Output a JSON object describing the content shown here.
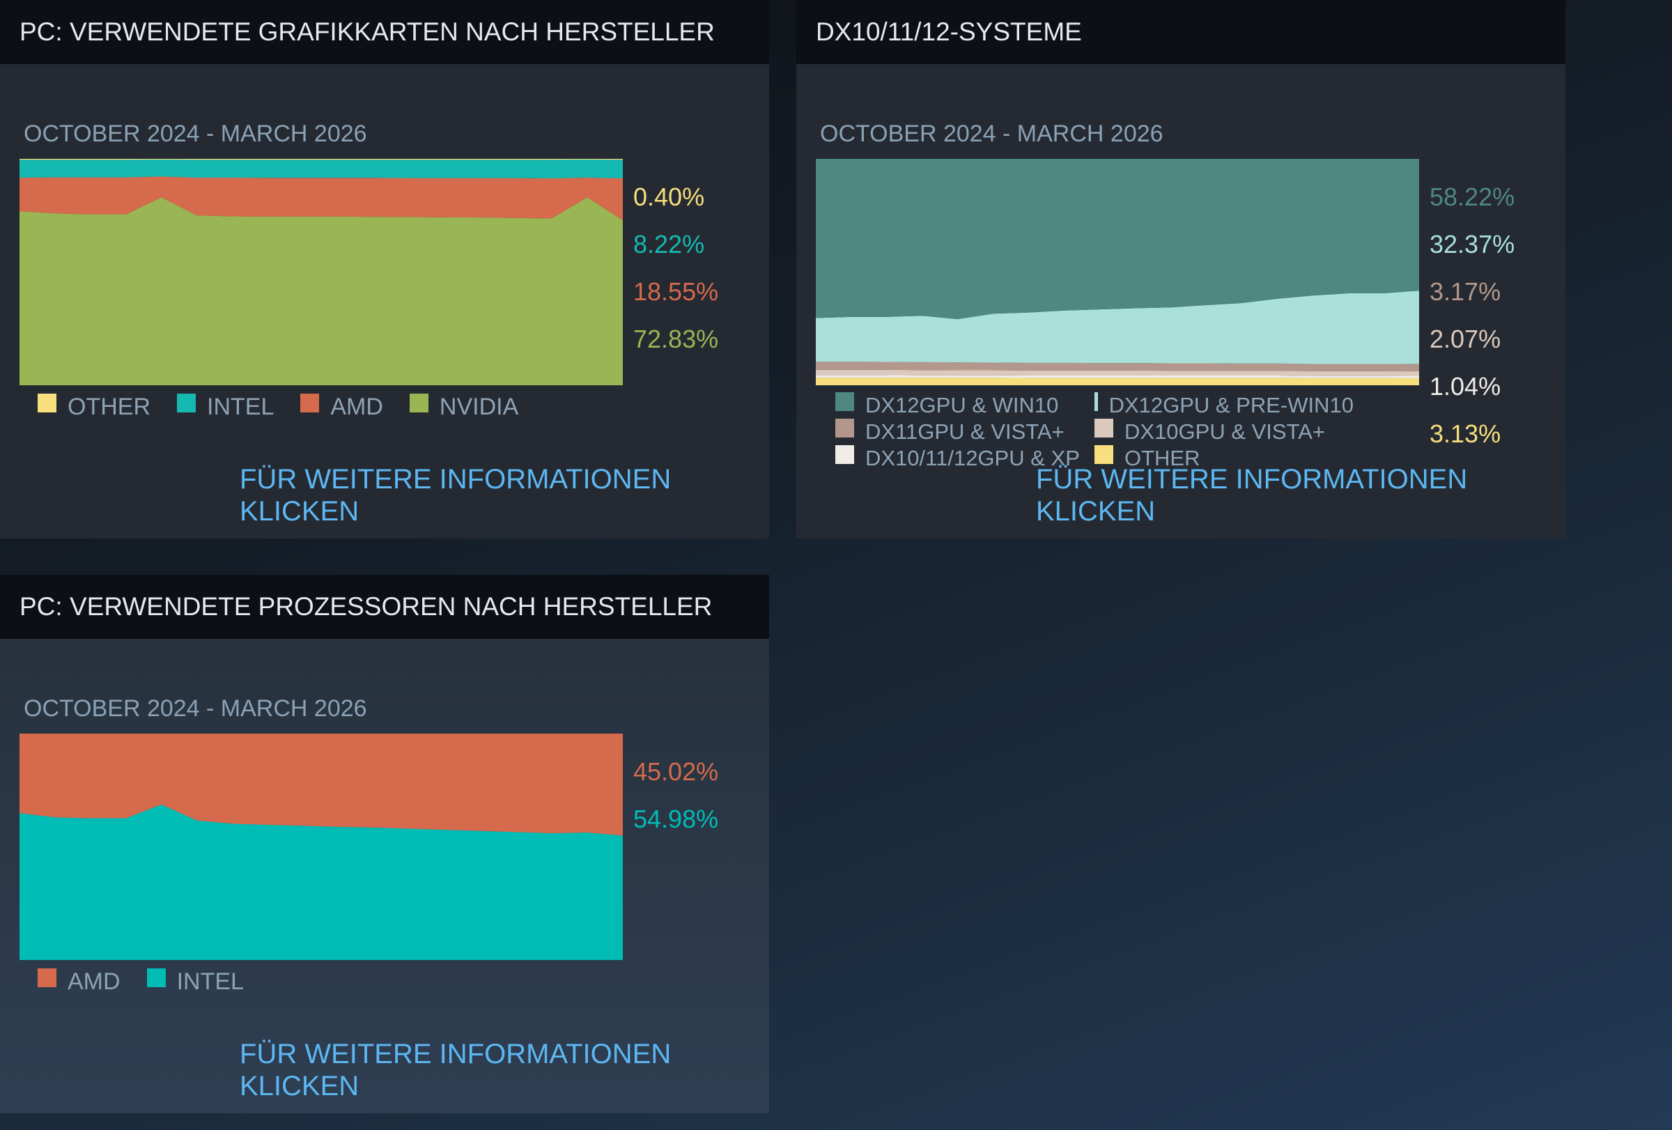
{
  "chart_data": [
    {
      "type": "area",
      "stacked": true,
      "title": "PC: VERWENDETE GRAFIKKARTEN NACH HERSTELLER",
      "subtitle": "OCTOBER 2024 - MARCH 2026",
      "link": "FÜR WEITERE INFORMATIONEN KLICKEN",
      "series": [
        {
          "name": "OTHER",
          "color": "#f6df7c",
          "value_label": "0.40%",
          "values": [
            0.4,
            0.4,
            0.4,
            0.4,
            0.3,
            0.4,
            0.4,
            0.4,
            0.4,
            0.4,
            0.4,
            0.4,
            0.4,
            0.4,
            0.4,
            0.4,
            0.3,
            0.4
          ]
        },
        {
          "name": "INTEL",
          "color": "#15b9b2",
          "value_label": "8.22%",
          "values": [
            7.9,
            7.8,
            7.8,
            7.8,
            7.5,
            7.9,
            7.9,
            8.0,
            8.0,
            8.0,
            8.0,
            8.1,
            8.1,
            8.1,
            8.1,
            8.2,
            8.0,
            8.22
          ]
        },
        {
          "name": "AMD",
          "color": "#d56b4c",
          "value_label": "18.55%",
          "values": [
            14.8,
            15.9,
            16.3,
            16.3,
            9.2,
            16.7,
            17.1,
            17.1,
            17.1,
            17.1,
            17.2,
            17.2,
            17.3,
            17.4,
            17.6,
            17.7,
            8.7,
            18.55
          ]
        },
        {
          "name": "NVIDIA",
          "color": "#9ab553",
          "value_label": "72.83%",
          "values": [
            76.9,
            75.9,
            75.5,
            75.5,
            83.0,
            75.0,
            74.6,
            74.5,
            74.5,
            74.5,
            74.4,
            74.3,
            74.2,
            74.1,
            73.9,
            73.7,
            83.0,
            72.83
          ]
        }
      ]
    },
    {
      "type": "area",
      "stacked": true,
      "title": "DX10/11/12-SYSTEME",
      "subtitle": "OCTOBER 2024 - MARCH 2026",
      "link": "FÜR WEITERE INFORMATIONEN KLICKEN",
      "series": [
        {
          "name": "DX12GPU & WIN10",
          "color": "#4e8880",
          "value_label": "58.22%",
          "values": [
            70.3,
            69.8,
            69.8,
            69.3,
            70.8,
            68.4,
            67.9,
            67.0,
            66.5,
            66.0,
            65.6,
            64.6,
            63.7,
            61.8,
            60.4,
            59.4,
            59.4,
            58.22
          ]
        },
        {
          "name": "DX12GPU & PRE-WIN10",
          "color": "#a9e0da",
          "value_label": "32.37%",
          "values": [
            19.3,
            19.8,
            19.9,
            20.5,
            19.1,
            21.6,
            22.2,
            23.1,
            23.7,
            24.2,
            24.7,
            25.7,
            26.7,
            28.6,
            30.2,
            31.2,
            31.2,
            32.37
          ]
        },
        {
          "name": "DX11GPU & VISTA+",
          "color": "#b3978d",
          "value_label": "3.17%",
          "values": [
            3.6,
            3.6,
            3.5,
            3.5,
            3.5,
            3.4,
            3.4,
            3.4,
            3.3,
            3.3,
            3.3,
            3.3,
            3.2,
            3.2,
            3.2,
            3.2,
            3.2,
            3.17
          ]
        },
        {
          "name": "DX10GPU & VISTA+",
          "color": "#dcc9bd",
          "value_label": "2.07%",
          "values": [
            2.3,
            2.3,
            2.3,
            2.3,
            2.2,
            2.2,
            2.2,
            2.2,
            2.2,
            2.2,
            2.1,
            2.1,
            2.1,
            2.1,
            2.1,
            2.1,
            2.1,
            2.07
          ]
        },
        {
          "name": "DX10/11/12GPU & XP",
          "color": "#f1ece8",
          "value_label": "1.04%",
          "values": [
            1.2,
            1.2,
            1.2,
            1.1,
            1.1,
            1.1,
            1.1,
            1.1,
            1.1,
            1.1,
            1.1,
            1.1,
            1.1,
            1.1,
            1.0,
            1.0,
            1.0,
            1.04
          ]
        },
        {
          "name": "OTHER",
          "color": "#f6df7c",
          "value_label": "3.13%",
          "values": [
            3.3,
            3.3,
            3.3,
            3.3,
            3.3,
            3.3,
            3.2,
            3.2,
            3.2,
            3.2,
            3.2,
            3.2,
            3.2,
            3.2,
            3.1,
            3.1,
            3.1,
            3.13
          ]
        }
      ]
    },
    {
      "type": "area",
      "stacked": true,
      "title": "PC: VERWENDETE PROZESSOREN NACH HERSTELLER",
      "subtitle": "OCTOBER 2024 - MARCH 2026",
      "link": "FÜR WEITERE INFORMATIONEN KLICKEN",
      "series": [
        {
          "name": "AMD",
          "color": "#d56b4c",
          "value_label": "45.02%",
          "values": [
            35.1,
            37.0,
            37.4,
            37.4,
            31.3,
            38.4,
            39.8,
            40.3,
            40.7,
            41.2,
            41.5,
            42.0,
            42.5,
            43.0,
            43.5,
            44.0,
            43.7,
            45.02
          ]
        },
        {
          "name": "INTEL",
          "color": "#00bcb5",
          "value_label": "54.98%",
          "values": [
            64.9,
            63.0,
            62.6,
            62.6,
            68.7,
            61.6,
            60.2,
            59.7,
            59.3,
            58.8,
            58.5,
            58.0,
            57.5,
            57.0,
            56.5,
            56.0,
            56.3,
            54.98
          ]
        }
      ]
    }
  ]
}
